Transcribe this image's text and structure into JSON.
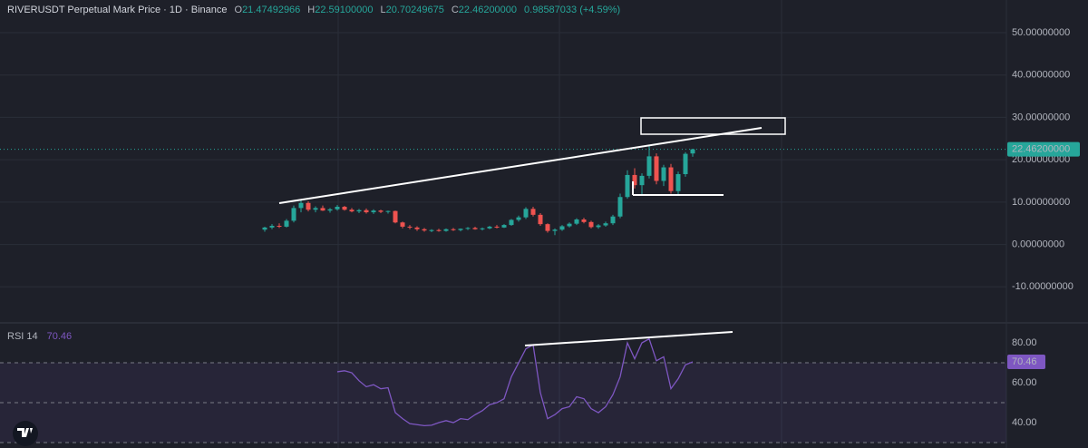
{
  "chart_data": [
    {
      "type": "candlestick",
      "title": "RIVERUSDT Perpetual Mark Price · 1D · Binance",
      "ohlc_letters": [
        "O",
        "H",
        "L",
        "C"
      ],
      "ohlc_values": [
        "21.47492966",
        "22.59100000",
        "20.70249675",
        "22.46200000"
      ],
      "change": "0.98587033 (+4.59%)",
      "last_label": "22.46200000",
      "up_color": "#26a69a",
      "down_color": "#ef5350",
      "ylim": [
        -18.5,
        57.7
      ],
      "yticks": [
        {
          "value": -10,
          "label": "-10.00000000"
        },
        {
          "value": 0,
          "label": "0.00000000"
        },
        {
          "value": 10,
          "label": "10.00000000"
        },
        {
          "value": 20,
          "label": "20.00000000"
        },
        {
          "value": 30,
          "label": "30.00000000"
        },
        {
          "value": 40,
          "label": "40.00000000"
        },
        {
          "value": 50,
          "label": "50.00000000"
        }
      ],
      "grid": true,
      "candles": [
        [
          3.5,
          4.2,
          3.0,
          4.0
        ],
        [
          4.0,
          4.8,
          3.6,
          4.4
        ],
        [
          4.4,
          5.0,
          3.9,
          4.2
        ],
        [
          4.2,
          6.0,
          4.0,
          5.6
        ],
        [
          5.6,
          9.2,
          5.2,
          8.6
        ],
        [
          8.6,
          10.4,
          7.6,
          9.8
        ],
        [
          9.8,
          10.2,
          7.8,
          8.2
        ],
        [
          8.2,
          9.0,
          7.6,
          8.6
        ],
        [
          8.6,
          9.2,
          7.9,
          8.0
        ],
        [
          8.0,
          8.6,
          7.5,
          8.3
        ],
        [
          8.3,
          9.3,
          8.0,
          8.9
        ],
        [
          8.9,
          9.1,
          8.0,
          8.2
        ],
        [
          8.2,
          8.6,
          7.6,
          7.8
        ],
        [
          7.8,
          8.4,
          7.4,
          8.1
        ],
        [
          8.1,
          8.5,
          7.3,
          7.6
        ],
        [
          7.6,
          8.3,
          7.2,
          8.0
        ],
        [
          8.0,
          8.2,
          7.4,
          7.7
        ],
        [
          7.7,
          8.0,
          7.3,
          7.9
        ],
        [
          7.9,
          8.0,
          5.0,
          5.2
        ],
        [
          5.2,
          5.4,
          3.8,
          4.2
        ],
        [
          4.2,
          4.6,
          3.6,
          4.0
        ],
        [
          4.0,
          4.3,
          3.2,
          3.6
        ],
        [
          3.6,
          3.9,
          3.0,
          3.3
        ],
        [
          3.3,
          3.6,
          2.9,
          3.4
        ],
        [
          3.4,
          3.7,
          3.0,
          3.2
        ],
        [
          3.2,
          3.8,
          3.0,
          3.6
        ],
        [
          3.6,
          3.9,
          3.2,
          3.4
        ],
        [
          3.4,
          3.8,
          3.1,
          3.7
        ],
        [
          3.7,
          4.1,
          3.4,
          3.9
        ],
        [
          3.9,
          4.2,
          3.5,
          3.6
        ],
        [
          3.6,
          4.0,
          3.3,
          3.8
        ],
        [
          3.8,
          4.4,
          3.6,
          4.2
        ],
        [
          4.2,
          4.6,
          3.8,
          4.0
        ],
        [
          4.0,
          4.8,
          3.9,
          4.6
        ],
        [
          4.6,
          6.0,
          4.4,
          5.8
        ],
        [
          5.8,
          6.8,
          5.4,
          6.4
        ],
        [
          6.4,
          8.8,
          6.0,
          8.4
        ],
        [
          8.4,
          8.9,
          6.6,
          7.0
        ],
        [
          7.0,
          7.4,
          4.4,
          4.8
        ],
        [
          4.8,
          5.0,
          2.8,
          3.2
        ],
        [
          3.2,
          3.8,
          2.2,
          3.5
        ],
        [
          3.5,
          4.6,
          3.2,
          4.3
        ],
        [
          4.3,
          5.2,
          4.0,
          4.9
        ],
        [
          4.9,
          6.2,
          4.6,
          5.9
        ],
        [
          5.9,
          6.3,
          5.0,
          5.3
        ],
        [
          5.3,
          5.6,
          3.8,
          4.1
        ],
        [
          4.1,
          4.8,
          3.7,
          4.5
        ],
        [
          4.5,
          5.4,
          4.2,
          5.0
        ],
        [
          5.0,
          7.0,
          4.6,
          6.6
        ],
        [
          6.6,
          12.0,
          6.2,
          11.2
        ],
        [
          11.2,
          17.5,
          10.8,
          16.4
        ],
        [
          16.4,
          18.0,
          13.2,
          14.0
        ],
        [
          14.0,
          16.8,
          11.5,
          16.2
        ],
        [
          16.2,
          23.5,
          15.6,
          20.8
        ],
        [
          20.8,
          21.5,
          14.2,
          15.0
        ],
        [
          15.0,
          18.8,
          13.8,
          18.2
        ],
        [
          18.2,
          19.0,
          12.0,
          12.6
        ],
        [
          12.6,
          17.2,
          11.8,
          16.6
        ],
        [
          16.6,
          21.8,
          16.0,
          21.4
        ],
        [
          21.47492966,
          22.591,
          20.70249675,
          22.462
        ]
      ]
    },
    {
      "type": "line",
      "title": "RSI 14",
      "color": "#7e57c2",
      "ylim": [
        27.3,
        89.1
      ],
      "yticks": [
        {
          "value": 40,
          "label": "40.00"
        },
        {
          "value": 60,
          "label": "60.00"
        },
        {
          "value": 80,
          "label": "80.00"
        }
      ],
      "bands": [
        30,
        50,
        70
      ],
      "values": [
        null,
        null,
        null,
        null,
        null,
        null,
        null,
        null,
        null,
        null,
        65.5,
        66,
        65,
        61,
        58,
        59,
        57,
        57.5,
        45,
        42,
        39.5,
        39,
        38.5,
        38.7,
        40,
        41,
        40,
        42,
        41.5,
        44,
        46,
        49,
        50,
        52,
        63,
        70,
        77,
        79,
        55,
        42,
        44,
        47,
        48,
        53,
        52,
        47,
        45,
        48,
        54,
        63,
        80,
        72,
        80,
        82,
        71,
        73,
        57,
        62,
        69,
        70.46
      ]
    }
  ]
}
